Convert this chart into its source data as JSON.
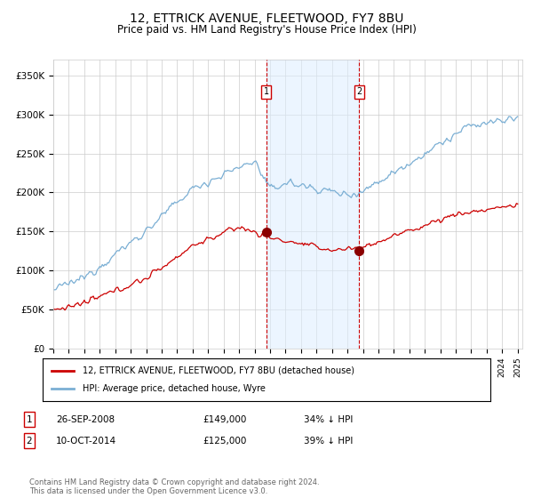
{
  "title": "12, ETTRICK AVENUE, FLEETWOOD, FY7 8BU",
  "subtitle": "Price paid vs. HM Land Registry's House Price Index (HPI)",
  "title_fontsize": 10,
  "subtitle_fontsize": 8.5,
  "ylim": [
    0,
    370000
  ],
  "yticks": [
    0,
    50000,
    100000,
    150000,
    200000,
    250000,
    300000,
    350000
  ],
  "ytick_labels": [
    "£0",
    "£50K",
    "£100K",
    "£150K",
    "£200K",
    "£250K",
    "£300K",
    "£350K"
  ],
  "hpi_color": "#7bafd4",
  "price_color": "#cc0000",
  "dot_color": "#8b0000",
  "marker1_year": 2008.75,
  "marker1_price": 149000,
  "marker2_year": 2014.78,
  "marker2_price": 125000,
  "shade_color": "#ddeeff",
  "shade_alpha": 0.55,
  "vline_color": "#cc0000",
  "grid_color": "#cccccc",
  "background_color": "#ffffff",
  "legend_house_label": "12, ETTRICK AVENUE, FLEETWOOD, FY7 8BU (detached house)",
  "legend_hpi_label": "HPI: Average price, detached house, Wyre",
  "note1_label": "1",
  "note1_date": "26-SEP-2008",
  "note1_price": "£149,000",
  "note1_pct": "34% ↓ HPI",
  "note2_label": "2",
  "note2_date": "10-OCT-2014",
  "note2_price": "£125,000",
  "note2_pct": "39% ↓ HPI",
  "footer": "Contains HM Land Registry data © Crown copyright and database right 2024.\nThis data is licensed under the Open Government Licence v3.0."
}
